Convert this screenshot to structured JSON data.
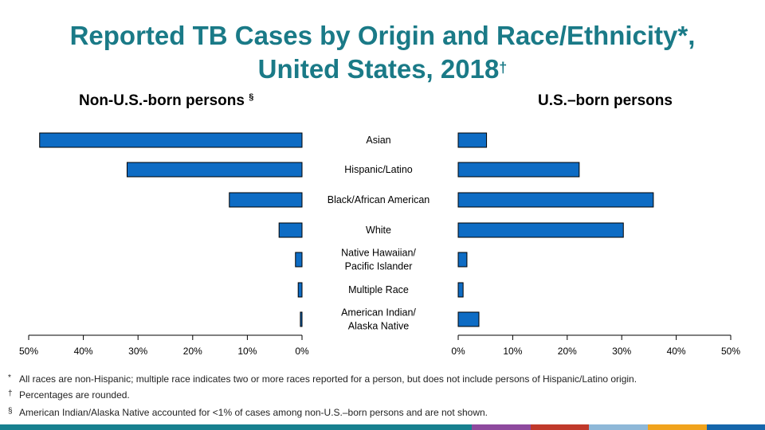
{
  "title": {
    "line1": "Reported TB Cases by Origin and Race/Ethnicity*,",
    "line2": "United States, 2018",
    "line2_mark": "†"
  },
  "chart_data": {
    "type": "bar",
    "orientation": "horizontal",
    "categories": [
      [
        "Asian"
      ],
      [
        "Hispanic/Latino"
      ],
      [
        "Black/African American"
      ],
      [
        "White"
      ],
      [
        "Native Hawaiian/",
        "Pacific Islander"
      ],
      [
        "Multiple Race"
      ],
      [
        "American Indian/",
        "Alaska Native"
      ]
    ],
    "panels": [
      {
        "name": "Non-U.S.-born persons",
        "name_mark": "§",
        "values": [
          48,
          32,
          13.3,
          4.2,
          1.2,
          0.7,
          0.3
        ],
        "xlim": [
          0,
          50
        ],
        "reversed": true,
        "ticks": [
          "50%",
          "40%",
          "30%",
          "20%",
          "10%",
          "0%"
        ]
      },
      {
        "name": "U.S.–born persons",
        "values": [
          5.2,
          22.2,
          35.8,
          30.3,
          1.6,
          0.9,
          3.8
        ],
        "xlim": [
          0,
          50
        ],
        "reversed": false,
        "ticks": [
          "0%",
          "10%",
          "20%",
          "30%",
          "40%",
          "50%"
        ]
      }
    ],
    "bar_color": "#0e6cc4",
    "bar_edge": "#000000"
  },
  "footnotes": [
    {
      "mark": "*",
      "text": "All races are non-Hispanic;  multiple race indicates two or more races reported for a person, but does not include persons of Hispanic/Latino origin."
    },
    {
      "mark": "†",
      "text": "Percentages are rounded."
    },
    {
      "mark": "§",
      "text": "American Indian/Alaska Native accounted for <1% of cases among non-U.S.–born persons and are not shown."
    }
  ],
  "bottom_bar_colors": [
    "#17808f",
    "#8e4a9e",
    "#c0392b",
    "#8eb8d8",
    "#f1a31c",
    "#1566ab"
  ]
}
